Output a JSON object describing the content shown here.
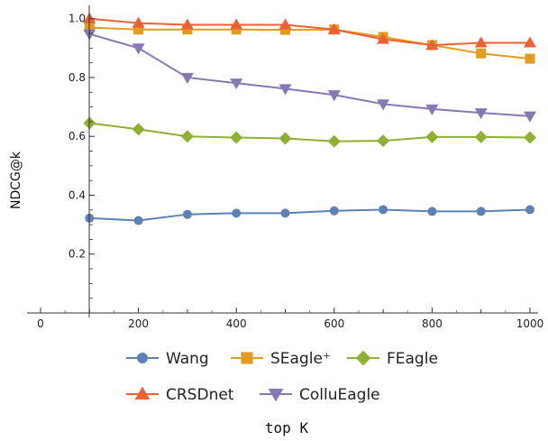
{
  "chart_data": {
    "type": "line",
    "xlabel": "top K",
    "ylabel": "NDCG@k",
    "xlim": [
      -50,
      1010
    ],
    "ylim": [
      0,
      1.04
    ],
    "x_ticks": [
      0,
      200,
      400,
      600,
      800,
      1000
    ],
    "y_ticks": [
      0.2,
      0.4,
      0.6,
      0.8,
      1.0
    ],
    "x_tick_labels": [
      "0",
      "200",
      "400",
      "600",
      "800",
      "1000"
    ],
    "y_tick_labels": [
      "0.2",
      "0.4",
      "0.6",
      "0.8",
      "1.0"
    ],
    "x": [
      100,
      200,
      300,
      400,
      500,
      600,
      700,
      800,
      900,
      1000
    ],
    "legend_position": "bottom",
    "series": [
      {
        "name": "Wang",
        "marker": "circle",
        "color": "#5e81b5",
        "values": [
          0.322,
          0.314,
          0.335,
          0.339,
          0.339,
          0.347,
          0.351,
          0.345,
          0.345,
          0.351
        ]
      },
      {
        "name": "SEagle⁺",
        "marker": "square",
        "color": "#e19c24",
        "values": [
          0.97,
          0.963,
          0.963,
          0.963,
          0.962,
          0.963,
          0.938,
          0.91,
          0.882,
          0.864
        ]
      },
      {
        "name": "FEagle",
        "marker": "diamond",
        "color": "#8fb032",
        "values": [
          0.645,
          0.624,
          0.6,
          0.596,
          0.593,
          0.583,
          0.585,
          0.598,
          0.598,
          0.596
        ]
      },
      {
        "name": "CRSDnet",
        "marker": "triangle-up",
        "color": "#eb6235",
        "values": [
          1.0,
          0.985,
          0.979,
          0.979,
          0.979,
          0.963,
          0.93,
          0.91,
          0.918,
          0.918
        ]
      },
      {
        "name": "ColluEagle",
        "marker": "triangle-down",
        "color": "#8778b3",
        "values": [
          0.948,
          0.9,
          0.8,
          0.781,
          0.762,
          0.741,
          0.71,
          0.693,
          0.68,
          0.669
        ]
      }
    ]
  }
}
